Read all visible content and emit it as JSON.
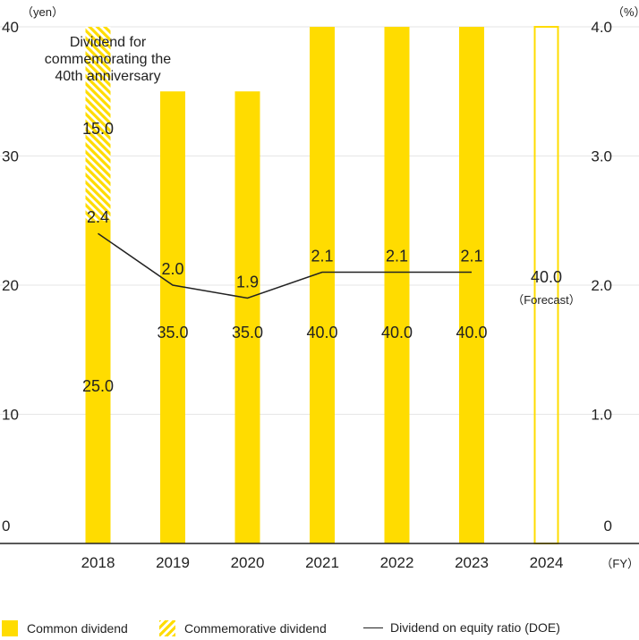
{
  "chart_data": {
    "type": "bar",
    "categories": [
      "2018",
      "2019",
      "2020",
      "2021",
      "2022",
      "2023",
      "2024"
    ],
    "series": [
      {
        "name": "Common dividend",
        "values": [
          25.0,
          35.0,
          35.0,
          40.0,
          40.0,
          40.0,
          40.0
        ],
        "labels": [
          "25.0",
          "35.0",
          "35.0",
          "40.0",
          "40.0",
          "40.0",
          "40.0"
        ]
      },
      {
        "name": "Commemorative dividend",
        "values": [
          15.0,
          0,
          0,
          0,
          0,
          0,
          0
        ],
        "labels": [
          "15.0",
          "",
          "",
          "",
          "",
          "",
          ""
        ]
      },
      {
        "name": "Dividend on equity ratio (DOE)",
        "axis": "right",
        "values": [
          2.4,
          2.0,
          1.9,
          2.1,
          2.1,
          2.1,
          null
        ],
        "labels": [
          "2.4",
          "2.0",
          "1.9",
          "2.1",
          "2.1",
          "2.1",
          ""
        ]
      }
    ],
    "forecast_category": "2024",
    "forecast_label": "（Forecast）",
    "annotation": [
      "Dividend for",
      "commemorating the",
      "40th anniversary"
    ],
    "y_left": {
      "unit": "（yen）",
      "ticks": [
        "0",
        "10",
        "20",
        "30",
        "40"
      ],
      "range": [
        0,
        40
      ]
    },
    "y_right": {
      "unit": "（%）",
      "ticks": [
        "0",
        "1.0",
        "2.0",
        "3.0",
        "4.0"
      ],
      "range": [
        0,
        4.0
      ]
    },
    "x_unit": "（FY）",
    "grid": true,
    "legend_position": "bottom",
    "colors": {
      "bar": "#FFDC00",
      "line": "#222222",
      "grid": "#e6e6e6",
      "axis": "#222222"
    }
  }
}
